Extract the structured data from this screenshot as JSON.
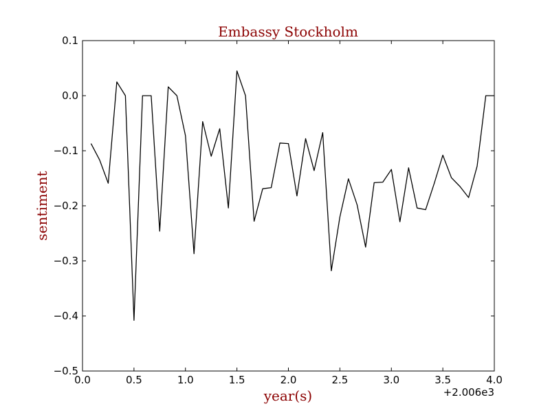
{
  "chart_data": {
    "type": "line",
    "title": "Embassy Stockholm",
    "xlabel": "year(s)",
    "ylabel": "sentiment",
    "x_offset_label": "+2.006e3",
    "xlim": [
      0.0,
      4.0
    ],
    "ylim": [
      -0.5,
      0.1
    ],
    "x_ticks": [
      "0.0",
      "0.5",
      "1.0",
      "1.5",
      "2.0",
      "2.5",
      "3.0",
      "3.5",
      "4.0"
    ],
    "y_ticks": [
      "0.1",
      "0.0",
      "−0.1",
      "−0.2",
      "−0.3",
      "−0.4",
      "−0.5"
    ],
    "grid": false,
    "series": [
      {
        "line_color": "#000000",
        "x": [
          0.083,
          0.167,
          0.25,
          0.333,
          0.417,
          0.5,
          0.583,
          0.667,
          0.75,
          0.833,
          0.917,
          1.0,
          1.083,
          1.167,
          1.25,
          1.333,
          1.417,
          1.5,
          1.583,
          1.667,
          1.75,
          1.833,
          1.917,
          2.0,
          2.083,
          2.167,
          2.25,
          2.333,
          2.417,
          2.5,
          2.583,
          2.667,
          2.75,
          2.833,
          2.917,
          3.0,
          3.083,
          3.167,
          3.25,
          3.333,
          3.417,
          3.5,
          3.583,
          3.667,
          3.75,
          3.833,
          3.917,
          4.0
        ],
        "y": [
          -0.087,
          -0.117,
          -0.159,
          0.025,
          0.0,
          -0.408,
          0.0,
          0.0,
          -0.246,
          0.016,
          0.0,
          -0.073,
          -0.287,
          -0.047,
          -0.11,
          -0.06,
          -0.204,
          0.045,
          0.0,
          -0.228,
          -0.169,
          -0.167,
          -0.086,
          -0.087,
          -0.182,
          -0.078,
          -0.136,
          -0.067,
          -0.318,
          -0.22,
          -0.151,
          -0.198,
          -0.275,
          -0.158,
          -0.157,
          -0.134,
          -0.229,
          -0.131,
          -0.204,
          -0.207,
          -0.159,
          -0.108,
          -0.149,
          -0.165,
          -0.185,
          -0.128,
          0.0,
          0.0
        ]
      }
    ]
  },
  "colors": {
    "title": "#8b0000",
    "axis_label": "#8b0000",
    "axes": "#000000",
    "background": "#ffffff"
  }
}
